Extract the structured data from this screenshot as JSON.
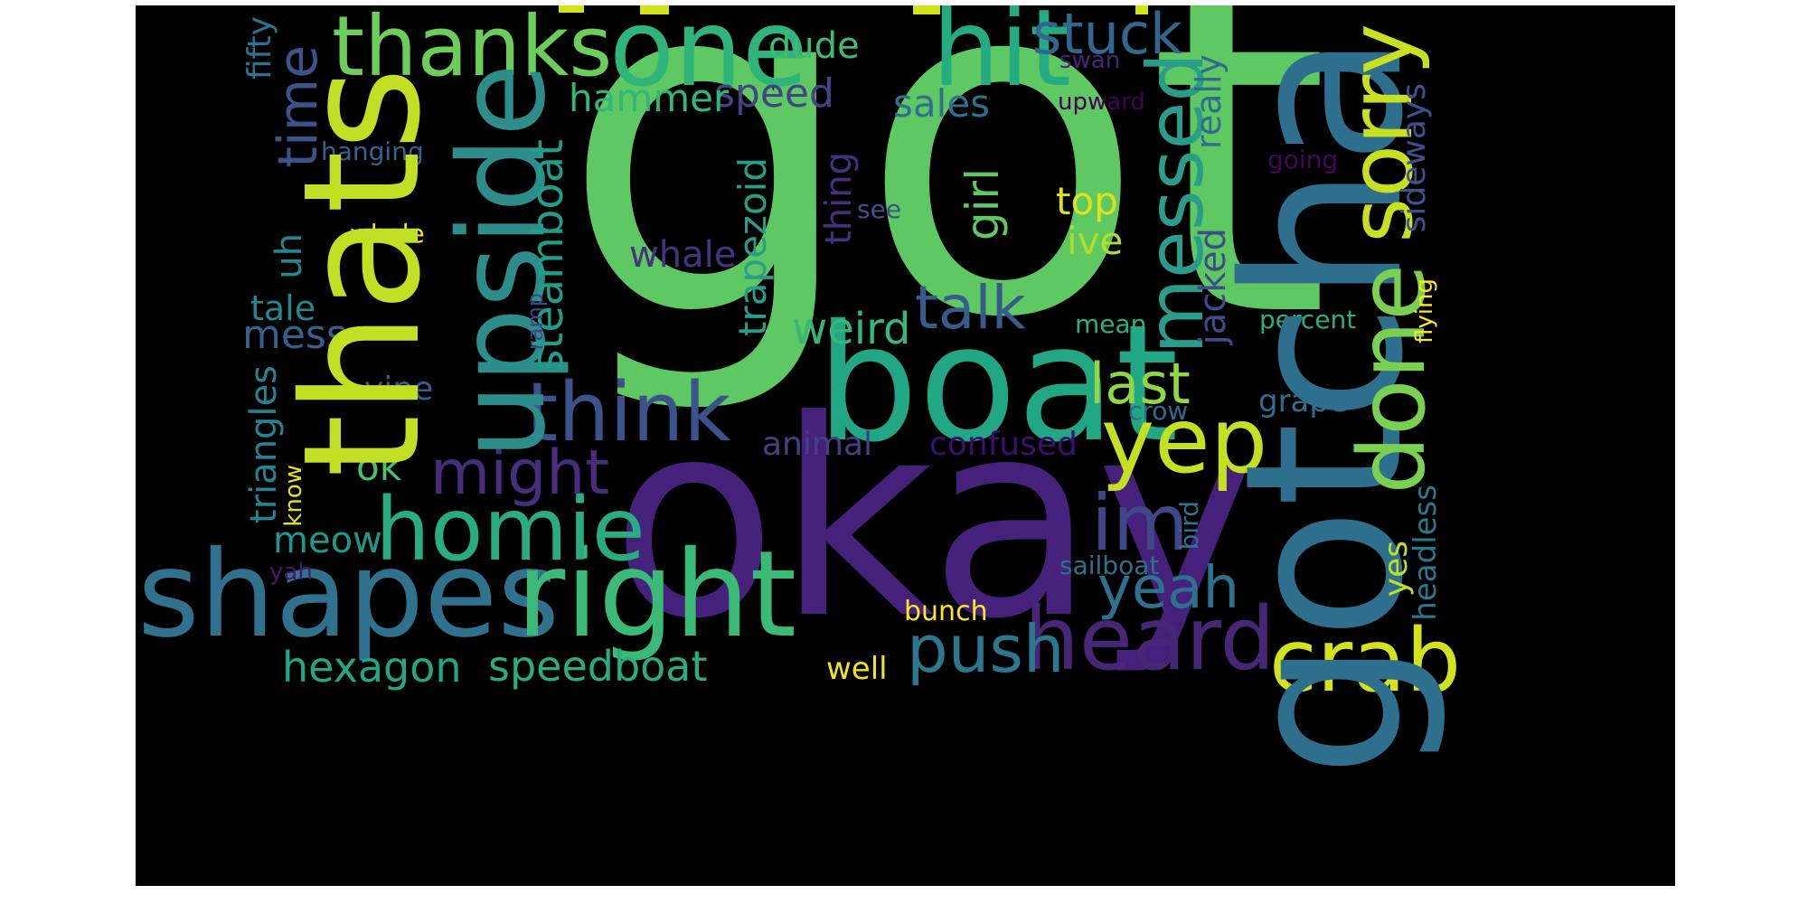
{
  "words": [
    {
      "text": "got",
      "color": "#5ec962"
    },
    {
      "text": "okay",
      "color": "#46217b"
    },
    {
      "text": "gotcha",
      "color": "#2e6f8e"
    },
    {
      "text": "thats",
      "color": "#c2df23"
    },
    {
      "text": "boat",
      "color": "#22a785"
    },
    {
      "text": "upside",
      "color": "#2c8d8b"
    },
    {
      "text": "shapes",
      "color": "#30718e"
    },
    {
      "text": "right",
      "color": "#3aba76"
    },
    {
      "text": "one",
      "color": "#2fb47c"
    },
    {
      "text": "hit",
      "color": "#25ab82"
    },
    {
      "text": "thanks",
      "color": "#6ccd5a"
    },
    {
      "text": "homie",
      "color": "#27ad81"
    },
    {
      "text": "heard",
      "color": "#482677"
    },
    {
      "text": "think",
      "color": "#3b528b"
    },
    {
      "text": "done",
      "color": "#7ad151"
    },
    {
      "text": "sorry",
      "color": "#c8e020"
    },
    {
      "text": "messed",
      "color": "#2a9d8a"
    },
    {
      "text": "yep",
      "color": "#c5df21"
    },
    {
      "text": "crab",
      "color": "#d2e21b"
    },
    {
      "text": "push",
      "color": "#2a778e"
    },
    {
      "text": "im",
      "color": "#3f4788"
    },
    {
      "text": "talk",
      "color": "#375b8d"
    },
    {
      "text": "might",
      "color": "#472d7b"
    },
    {
      "text": "yeah",
      "color": "#2d718e"
    },
    {
      "text": "stuck",
      "color": "#31668e"
    },
    {
      "text": "time",
      "color": "#3b528b"
    },
    {
      "text": "last",
      "color": "#8fd744"
    },
    {
      "text": "girl",
      "color": "#5cc863"
    },
    {
      "text": "speedboat",
      "color": "#28ae80"
    },
    {
      "text": "steamboat",
      "color": "#1f9e89"
    },
    {
      "text": "trapezoid",
      "color": "#2a9d8a"
    },
    {
      "text": "hexagon",
      "color": "#22a785"
    },
    {
      "text": "triangles",
      "color": "#26828e"
    },
    {
      "text": "weird",
      "color": "#35b779"
    },
    {
      "text": "speed",
      "color": "#414487"
    },
    {
      "text": "hammer",
      "color": "#32b67a"
    },
    {
      "text": "sales",
      "color": "#2d718e"
    },
    {
      "text": "jacked",
      "color": "#3e4c8a"
    },
    {
      "text": "sideways",
      "color": "#3b528b"
    },
    {
      "text": "dude",
      "color": "#3dbc74"
    },
    {
      "text": "fifty",
      "color": "#2c728e"
    },
    {
      "text": "mess",
      "color": "#33628d"
    },
    {
      "text": "uh",
      "color": "#24868e"
    },
    {
      "text": "meow",
      "color": "#1f988b"
    },
    {
      "text": "ok",
      "color": "#4ac16d"
    },
    {
      "text": "tale",
      "color": "#24868e"
    },
    {
      "text": "top",
      "color": "#dde318"
    },
    {
      "text": "ive",
      "color": "#b2dd2d"
    },
    {
      "text": "whale",
      "color": "#46337e"
    },
    {
      "text": "thing",
      "color": "#46307e"
    },
    {
      "text": "really",
      "color": "#2f6c8e"
    },
    {
      "text": "confused",
      "color": "#3b0f70"
    },
    {
      "text": "animal",
      "color": "#424086"
    },
    {
      "text": "grape",
      "color": "#2e6e8e"
    },
    {
      "text": "yes",
      "color": "#bddf26"
    },
    {
      "text": "headless",
      "color": "#2a788e"
    },
    {
      "text": "vine",
      "color": "#355f8d"
    },
    {
      "text": "well",
      "color": "#f1e51d"
    },
    {
      "text": "bunch",
      "color": "#fde725"
    },
    {
      "text": "sailboat",
      "color": "#2c728e"
    },
    {
      "text": "mean",
      "color": "#2ab07f"
    },
    {
      "text": "percent",
      "color": "#29af7f"
    },
    {
      "text": "flying",
      "color": "#fde725"
    },
    {
      "text": "crow",
      "color": "#31688e"
    },
    {
      "text": "hanging",
      "color": "#33638d"
    },
    {
      "text": "whole",
      "color": "#fde725"
    },
    {
      "text": "swan",
      "color": "#482475"
    },
    {
      "text": "upward",
      "color": "#440154"
    },
    {
      "text": "going",
      "color": "#450559"
    },
    {
      "text": "see",
      "color": "#3b528b"
    },
    {
      "text": "ramp",
      "color": "#404588"
    },
    {
      "text": "know",
      "color": "#e2e418"
    },
    {
      "text": "yah",
      "color": "#48186a"
    },
    {
      "text": "bird",
      "color": "#2b758e"
    }
  ],
  "clipped_glyph_color": "#d2e21b"
}
